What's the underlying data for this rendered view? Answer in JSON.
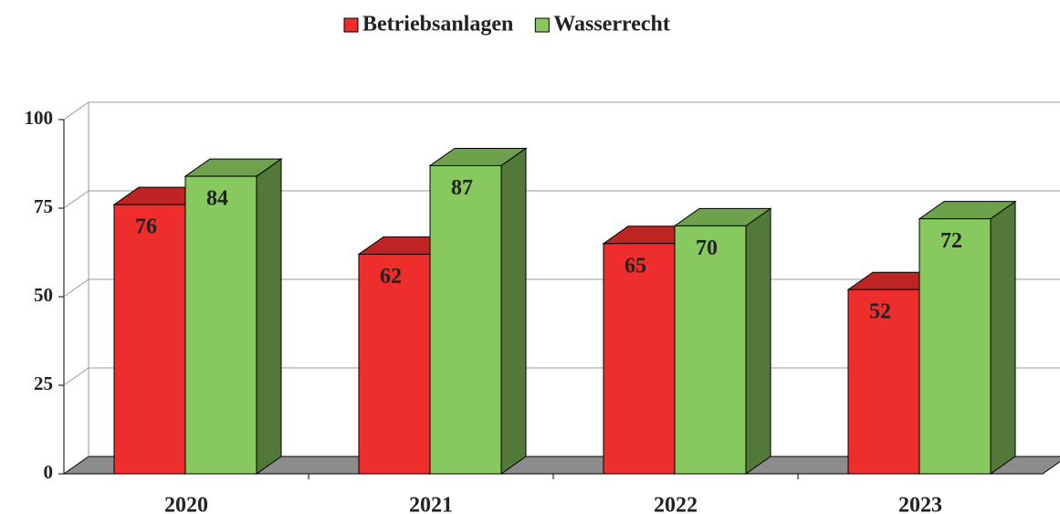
{
  "chart_data": {
    "type": "bar3d",
    "categories": [
      "2020",
      "2021",
      "2022",
      "2023"
    ],
    "series": [
      {
        "name": "Betriebsanlagen",
        "color": "#ee2d2d",
        "values": [
          76,
          62,
          65,
          52
        ]
      },
      {
        "name": "Wasserrecht",
        "color": "#88c95f",
        "values": [
          84,
          87,
          70,
          72
        ]
      }
    ],
    "ylim": [
      0,
      100
    ],
    "yticks": [
      0,
      25,
      50,
      75,
      100
    ],
    "grid": true,
    "legend": "top"
  }
}
